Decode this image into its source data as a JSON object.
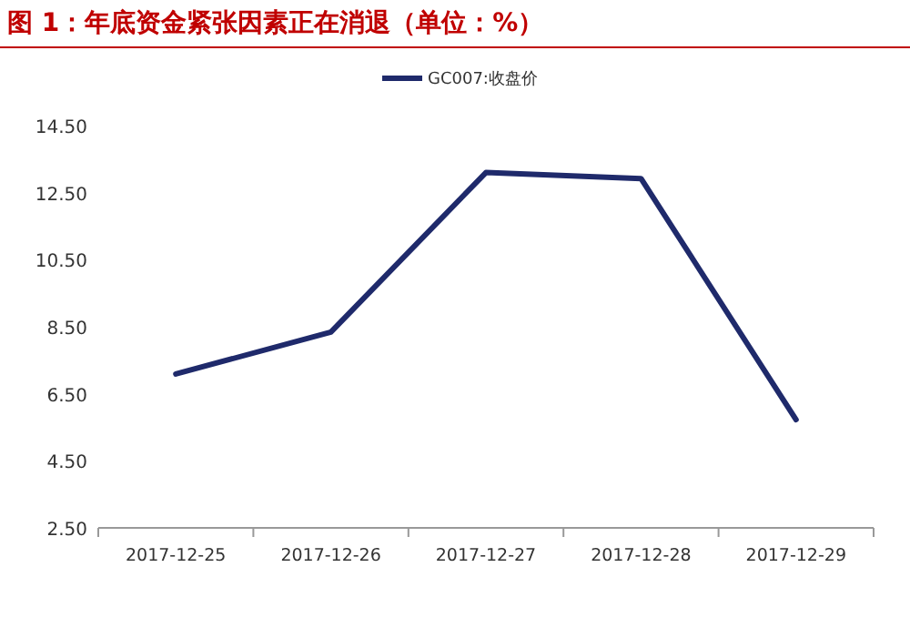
{
  "chart_data": {
    "type": "line",
    "title": "图 1：年底资金紧张因素正在消退（单位：%）",
    "categories": [
      "2017-12-25",
      "2017-12-26",
      "2017-12-27",
      "2017-12-28",
      "2017-12-29"
    ],
    "series": [
      {
        "name": "GC007:收盘价",
        "color": "#1f2a6b",
        "values": [
          7.09,
          8.34,
          13.1,
          12.92,
          5.73
        ]
      }
    ],
    "ylim": [
      2.5,
      14.5
    ],
    "yticks": [
      {
        "value": 2.5,
        "label": "2.50"
      },
      {
        "value": 4.5,
        "label": "4.50"
      },
      {
        "value": 6.5,
        "label": "6.50"
      },
      {
        "value": 8.5,
        "label": "8.50"
      },
      {
        "value": 10.5,
        "label": "10.50"
      },
      {
        "value": 12.5,
        "label": "12.50"
      },
      {
        "value": 14.5,
        "label": "14.50"
      }
    ],
    "legend": "top",
    "grid": false,
    "marker": "none",
    "line_style": "solid"
  }
}
